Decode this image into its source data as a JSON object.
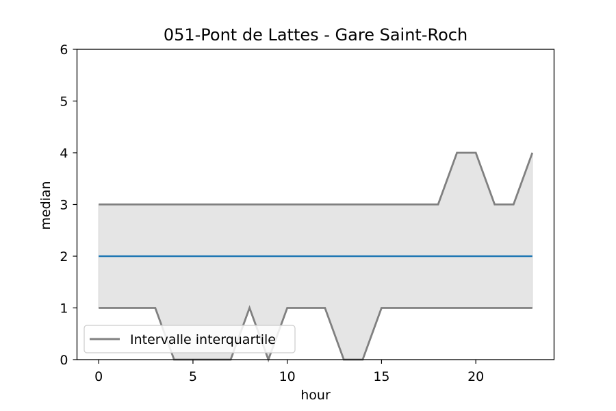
{
  "chart_data": {
    "type": "line",
    "title": "051-Pont de Lattes - Gare Saint-Roch",
    "xlabel": "hour",
    "ylabel": "median",
    "xlim": [
      -1.15,
      24.15
    ],
    "ylim": [
      0,
      6
    ],
    "xticks": [
      0,
      5,
      10,
      15,
      20
    ],
    "yticks": [
      0,
      1,
      2,
      3,
      4,
      5,
      6
    ],
    "grid": false,
    "legend_position": "lower-left",
    "x": [
      0,
      1,
      2,
      3,
      4,
      5,
      6,
      7,
      8,
      9,
      10,
      11,
      12,
      13,
      14,
      15,
      16,
      17,
      18,
      19,
      20,
      21,
      22,
      23
    ],
    "series": [
      {
        "key": "median",
        "values": [
          2,
          2,
          2,
          2,
          2,
          2,
          2,
          2,
          2,
          2,
          2,
          2,
          2,
          2,
          2,
          2,
          2,
          2,
          2,
          2,
          2,
          2,
          2,
          2
        ],
        "color": "#1f77b4"
      },
      {
        "key": "q1",
        "name": "Intervalle interquartile",
        "values": [
          1,
          1,
          1,
          1,
          0,
          0,
          0,
          0,
          1,
          0,
          1,
          1,
          1,
          0,
          0,
          1,
          1,
          1,
          1,
          1,
          1,
          1,
          1,
          1
        ],
        "color": "#808080"
      },
      {
        "key": "q3",
        "values": [
          3,
          3,
          3,
          3,
          3,
          3,
          3,
          3,
          3,
          3,
          3,
          3,
          3,
          3,
          3,
          3,
          3,
          3,
          3,
          4,
          4,
          3,
          3,
          4
        ],
        "color": "#808080"
      }
    ],
    "band_fill": "#e5e5e5"
  }
}
